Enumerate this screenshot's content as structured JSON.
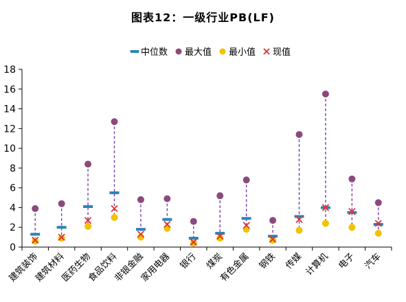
{
  "chart_data": {
    "type": "scatter",
    "title": "图表12：一级行业PB(LF)",
    "xlabel": "",
    "ylabel": "",
    "ylim": [
      0,
      18
    ],
    "yticks": [
      0,
      2,
      4,
      6,
      8,
      10,
      12,
      14,
      16,
      18
    ],
    "grid": false,
    "legend_position": "top-center",
    "categories": [
      "建筑装饰",
      "建筑材料",
      "医药生物",
      "食品饮料",
      "非银金融",
      "家用电器",
      "银行",
      "煤炭",
      "有色金属",
      "钢铁",
      "传媒",
      "计算机",
      "电子",
      "汽车"
    ],
    "series": [
      {
        "name": "中位数",
        "marker": "dash",
        "color": "#2a83b8",
        "values": [
          1.3,
          2.0,
          4.1,
          5.5,
          1.8,
          2.8,
          0.9,
          1.4,
          2.9,
          1.1,
          3.1,
          4.0,
          3.5,
          2.3
        ]
      },
      {
        "name": "最大值",
        "marker": "circle",
        "color": "#8b4a7b",
        "values": [
          3.9,
          4.4,
          8.4,
          12.7,
          4.8,
          4.9,
          2.6,
          5.2,
          6.8,
          2.7,
          11.4,
          15.5,
          6.9,
          4.5
        ]
      },
      {
        "name": "最小值",
        "marker": "circle",
        "color": "#f2c200",
        "values": [
          0.6,
          0.9,
          2.1,
          3.0,
          1.0,
          1.9,
          0.4,
          0.9,
          1.8,
          0.7,
          1.7,
          2.4,
          2.0,
          1.4
        ]
      },
      {
        "name": "现值",
        "marker": "cross",
        "color": "#e03030",
        "values": [
          0.7,
          1.0,
          2.7,
          3.9,
          1.3,
          2.3,
          0.5,
          1.1,
          2.2,
          0.8,
          2.8,
          4.0,
          3.6,
          2.4
        ]
      }
    ],
    "range_line_color": "#7a3fa8"
  }
}
